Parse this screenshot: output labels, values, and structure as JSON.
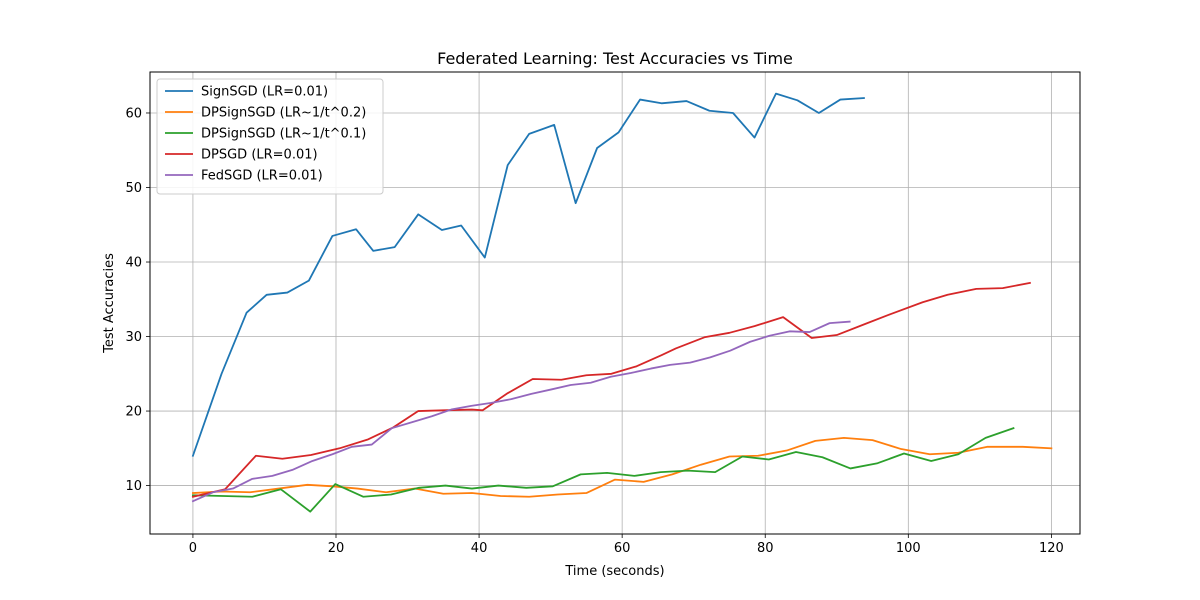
{
  "chart_data": {
    "type": "line",
    "title": "Federated Learning: Test Accuracies vs Time",
    "xlabel": "Time (seconds)",
    "ylabel": "Test Accuracies",
    "xlim": [
      -6,
      124
    ],
    "ylim": [
      3.5,
      65.5
    ],
    "xticks": [
      0,
      20,
      40,
      60,
      80,
      100,
      120
    ],
    "yticks": [
      10,
      20,
      30,
      40,
      50,
      60
    ],
    "grid": true,
    "legend_position": "top-left",
    "series": [
      {
        "name": "SignSGD (LR=0.01)",
        "color": "#1f77b4",
        "x": [
          0,
          4,
          7.5,
          10.3,
          13.2,
          16.2,
          19.5,
          22.8,
          25.2,
          28.2,
          31.5,
          34.8,
          37.5,
          40.8,
          44,
          47,
          50.5,
          53.5,
          56.5,
          59.5,
          62.5,
          65.5,
          69,
          72.2,
          75.5,
          78.5,
          81.5,
          84.5,
          87.5,
          90.5,
          93.8
        ],
        "y": [
          14,
          25,
          33.2,
          35.6,
          35.9,
          37.5,
          43.5,
          44.4,
          41.5,
          42,
          46.4,
          44.3,
          44.9,
          40.6,
          53,
          57.2,
          58.4,
          47.9,
          55.3,
          57.4,
          61.8,
          61.3,
          61.6,
          60.3,
          60,
          56.7,
          62.6,
          61.7,
          60,
          61.8,
          62
        ]
      },
      {
        "name": "DPSignSGD (LR~1/t^0.2)",
        "color": "#ff7f0e",
        "x": [
          0,
          4,
          8,
          12,
          16,
          19.5,
          23,
          27,
          31,
          35,
          39,
          43,
          47,
          51,
          55,
          59,
          63,
          67,
          71,
          75,
          79,
          83,
          87,
          91,
          95,
          99,
          103,
          107,
          111,
          116,
          120
        ],
        "y": [
          9,
          9.2,
          9.1,
          9.6,
          10.1,
          9.9,
          9.6,
          9.1,
          9.6,
          8.9,
          9,
          8.6,
          8.5,
          8.8,
          9,
          10.8,
          10.5,
          11.5,
          12.8,
          13.9,
          14,
          14.7,
          16,
          16.4,
          16.1,
          14.9,
          14.2,
          14.4,
          15.2,
          15.2,
          15
        ]
      },
      {
        "name": "DPSignSGD (LR~1/t^0.1)",
        "color": "#2ca02c",
        "x": [
          0,
          4.2,
          8.3,
          12.3,
          16.4,
          19.9,
          23.8,
          27.7,
          31.6,
          35.3,
          39,
          42.7,
          46.6,
          50.3,
          54.2,
          57.9,
          61.7,
          65.4,
          69.2,
          73,
          76.8,
          80.5,
          84.3,
          88,
          91.9,
          95.7,
          99.4,
          103.2,
          107,
          110.8,
          114.7
        ],
        "y": [
          8.7,
          8.6,
          8.5,
          9.5,
          6.5,
          10.2,
          8.5,
          8.8,
          9.7,
          10,
          9.6,
          10,
          9.7,
          9.9,
          11.5,
          11.7,
          11.3,
          11.8,
          12,
          11.8,
          13.9,
          13.5,
          14.5,
          13.8,
          12.3,
          13,
          14.3,
          13.3,
          14.2,
          16.4,
          17.7
        ]
      },
      {
        "name": "DPSGD (LR=0.01)",
        "color": "#d62728",
        "x": [
          0,
          4.5,
          8.8,
          12.5,
          16.5,
          20.5,
          24.5,
          28,
          31.5,
          35,
          39,
          40.5,
          44,
          47.5,
          51.5,
          55,
          58.5,
          62,
          65.5,
          67.5,
          71.5,
          75,
          78.5,
          82.5,
          86.5,
          90,
          94,
          97.5,
          102,
          105.5,
          109.5,
          113.2,
          117
        ],
        "y": [
          8.5,
          9.5,
          14,
          13.6,
          14.1,
          15,
          16.2,
          17.8,
          20,
          20.1,
          20.2,
          20.1,
          22.4,
          24.3,
          24.2,
          24.8,
          25,
          26,
          27.5,
          28.4,
          29.9,
          30.5,
          31.4,
          32.6,
          29.8,
          30.2,
          31.7,
          33,
          34.6,
          35.6,
          36.4,
          36.5,
          37.2
        ]
      },
      {
        "name": "FedSGD (LR=0.01)",
        "color": "#9467bd",
        "x": [
          0,
          2.8,
          5.6,
          8.3,
          11.1,
          13.9,
          16.7,
          19.5,
          22.2,
          25,
          27.8,
          30.6,
          33.4,
          36.1,
          38.9,
          41.7,
          44.5,
          47.3,
          50.1,
          52.8,
          55.6,
          58.4,
          61.2,
          64,
          66.7,
          69.5,
          72.3,
          75.1,
          77.9,
          80.6,
          83.4,
          86.2,
          89,
          91.8
        ],
        "y": [
          7.9,
          9.1,
          9.6,
          10.9,
          11.3,
          12.1,
          13.3,
          14.2,
          15.2,
          15.5,
          17.7,
          18.5,
          19.3,
          20.2,
          20.7,
          21.1,
          21.6,
          22.3,
          22.9,
          23.5,
          23.8,
          24.6,
          25.1,
          25.7,
          26.2,
          26.5,
          27.2,
          28.1,
          29.3,
          30.1,
          30.7,
          30.6,
          31.8,
          32
        ]
      }
    ]
  }
}
